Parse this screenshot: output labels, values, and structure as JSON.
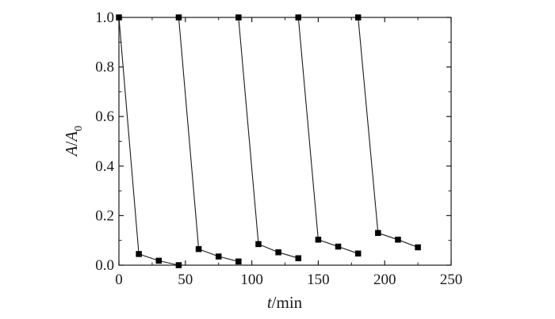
{
  "chart_data": {
    "type": "line",
    "xlabel": {
      "var": "t",
      "unit": "min"
    },
    "ylabel": {
      "var": "A",
      "sub_var": "A",
      "sub": "0"
    },
    "xlim": [
      0,
      250
    ],
    "ylim": [
      0,
      1.0
    ],
    "xticks": [
      "0",
      "50",
      "100",
      "150",
      "200",
      "250"
    ],
    "yticks": [
      "0.0",
      "0.2",
      "0.4",
      "0.6",
      "0.8",
      "1.0"
    ],
    "grid": false,
    "legend": "none",
    "series": [
      {
        "values": [
          [
            0,
            1.0
          ],
          [
            15,
            0.045
          ],
          [
            30,
            0.018
          ],
          [
            45,
            0.0
          ]
        ]
      },
      {
        "values": [
          [
            45,
            1.0
          ],
          [
            60,
            0.065
          ],
          [
            75,
            0.035
          ],
          [
            90,
            0.015
          ]
        ]
      },
      {
        "values": [
          [
            90,
            1.0
          ],
          [
            105,
            0.085
          ],
          [
            120,
            0.052
          ],
          [
            135,
            0.028
          ]
        ]
      },
      {
        "values": [
          [
            135,
            1.0
          ],
          [
            150,
            0.103
          ],
          [
            165,
            0.075
          ],
          [
            180,
            0.047
          ]
        ]
      },
      {
        "values": [
          [
            180,
            1.0
          ],
          [
            195,
            0.13
          ],
          [
            210,
            0.103
          ],
          [
            225,
            0.072
          ]
        ]
      }
    ],
    "colors": {
      "line": "#1a1a1a",
      "marker": "#000000",
      "axis": "#1a1a1a"
    }
  }
}
